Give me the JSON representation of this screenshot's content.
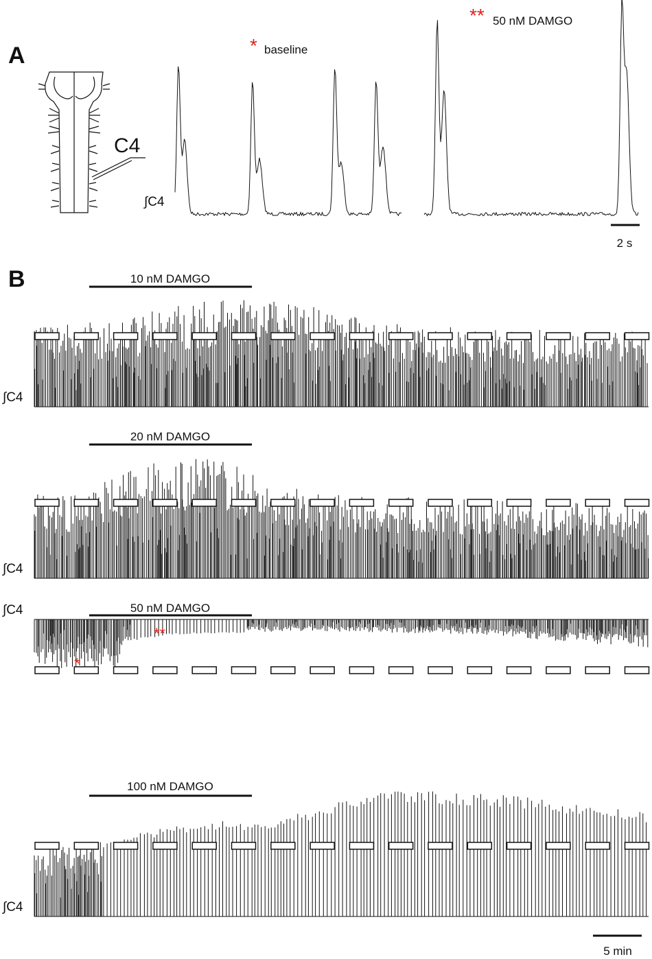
{
  "panels": {
    "A": {
      "label": "A",
      "electrode_label": "C4",
      "trace_label": "∫C4",
      "annotations": [
        {
          "marker": "*",
          "text": "baseline"
        },
        {
          "marker": "**",
          "text": "50 nM DAMGO"
        }
      ],
      "scale_bar": "2 s"
    },
    "B": {
      "label": "B",
      "traces": [
        {
          "drug": "10 nM DAMGO",
          "trace_label": "∫C4"
        },
        {
          "drug": "20 nM DAMGO",
          "trace_label": "∫C4"
        },
        {
          "drug": "50 nM DAMGO",
          "trace_label": "∫C4",
          "markers": [
            "*",
            "**"
          ]
        },
        {
          "drug": "100 nM DAMGO",
          "trace_label": "∫C4"
        }
      ],
      "scale_bar": "5 min"
    }
  }
}
